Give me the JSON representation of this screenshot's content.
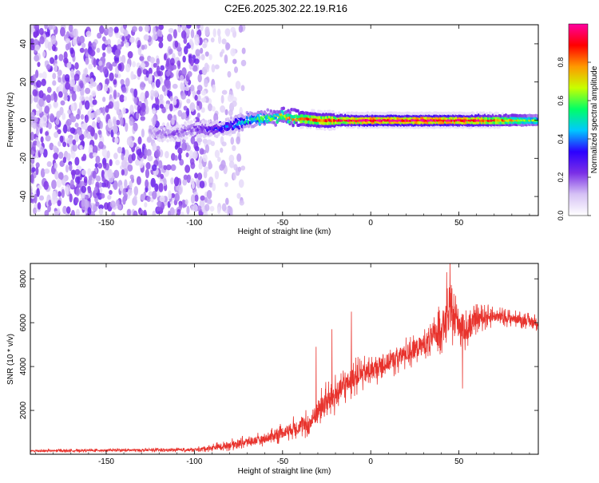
{
  "title": "C2E6.2025.302.22.19.R16",
  "chart_data": [
    {
      "type": "heatmap",
      "name": "spectrogram",
      "xlabel": "Height of straight line (km)",
      "ylabel": "Frequency (Hz)",
      "xlim": [
        -193,
        95
      ],
      "ylim": [
        -50,
        50
      ],
      "x_ticks": [
        -150,
        -100,
        -50,
        0,
        50
      ],
      "y_ticks": [
        -40,
        -20,
        0,
        20,
        40
      ],
      "colorbar": {
        "label": "Normalized spectral amplitude",
        "range": [
          0,
          1
        ],
        "ticks": [
          "0.0",
          "0.2",
          "0.4",
          "0.6",
          "0.8"
        ],
        "colors": [
          "#ffffff",
          "#d6c2f5",
          "#7b2fe6",
          "#2c00ff",
          "#00c8ff",
          "#00ff66",
          "#c8ff00",
          "#ff9900",
          "#ff0000",
          "#ff00a0"
        ]
      },
      "noise_band": {
        "x_range": [
          -193,
          -72
        ],
        "amplitude": [
          0.05,
          0.25
        ]
      },
      "signal_track": {
        "x": [
          -125,
          -110,
          -100,
          -90,
          -80,
          -70,
          -60,
          -50,
          -40,
          -30,
          -20,
          -10,
          0,
          20,
          40,
          60,
          80,
          95
        ],
        "freq": [
          -6,
          -7,
          -4,
          -5,
          -3,
          0,
          1,
          2,
          1,
          0,
          0,
          0,
          0,
          0,
          0,
          0,
          0,
          0
        ],
        "peak_amplitude": [
          0.15,
          0.2,
          0.2,
          0.3,
          0.4,
          0.5,
          0.6,
          0.7,
          0.8,
          0.85,
          0.9,
          0.95,
          1.0,
          1.0,
          1.0,
          0.95,
          0.75,
          0.6
        ]
      }
    },
    {
      "type": "line",
      "name": "snr",
      "xlabel": "Height of straight line (km)",
      "ylabel": "SNR (10 * v/v)",
      "xlim": [
        -193,
        95
      ],
      "ylim": [
        0,
        8700
      ],
      "x_ticks": [
        -150,
        -100,
        -50,
        0,
        50
      ],
      "y_ticks": [
        2000,
        4000,
        6000,
        8000
      ],
      "color": "#e8332d",
      "series": [
        {
          "name": "SNR envelope",
          "x": [
            -193,
            -150,
            -100,
            -85,
            -75,
            -60,
            -50,
            -40,
            -35,
            -30,
            -25,
            -20,
            -15,
            -10,
            0,
            10,
            20,
            30,
            35,
            40,
            45,
            50,
            55,
            60,
            70,
            80,
            95
          ],
          "y": [
            150,
            180,
            200,
            350,
            500,
            700,
            1000,
            1300,
            1300,
            2000,
            2400,
            2700,
            3100,
            3500,
            3800,
            4200,
            4600,
            5000,
            5300,
            5800,
            6400,
            6000,
            5600,
            6200,
            6300,
            6200,
            6000
          ],
          "spread": [
            80,
            90,
            110,
            250,
            300,
            350,
            500,
            600,
            800,
            900,
            1000,
            1000,
            900,
            900,
            800,
            800,
            800,
            900,
            1000,
            1300,
            1400,
            1300,
            1000,
            700,
            500,
            400,
            400
          ]
        }
      ],
      "spikes": [
        {
          "x": -31,
          "y": 4900
        },
        {
          "x": -22,
          "y": 5700
        },
        {
          "x": -11,
          "y": 6500
        },
        {
          "x": 43,
          "y": 8300
        },
        {
          "x": 45,
          "y": 8700
        },
        {
          "x": 52,
          "y": 3000
        }
      ]
    }
  ]
}
